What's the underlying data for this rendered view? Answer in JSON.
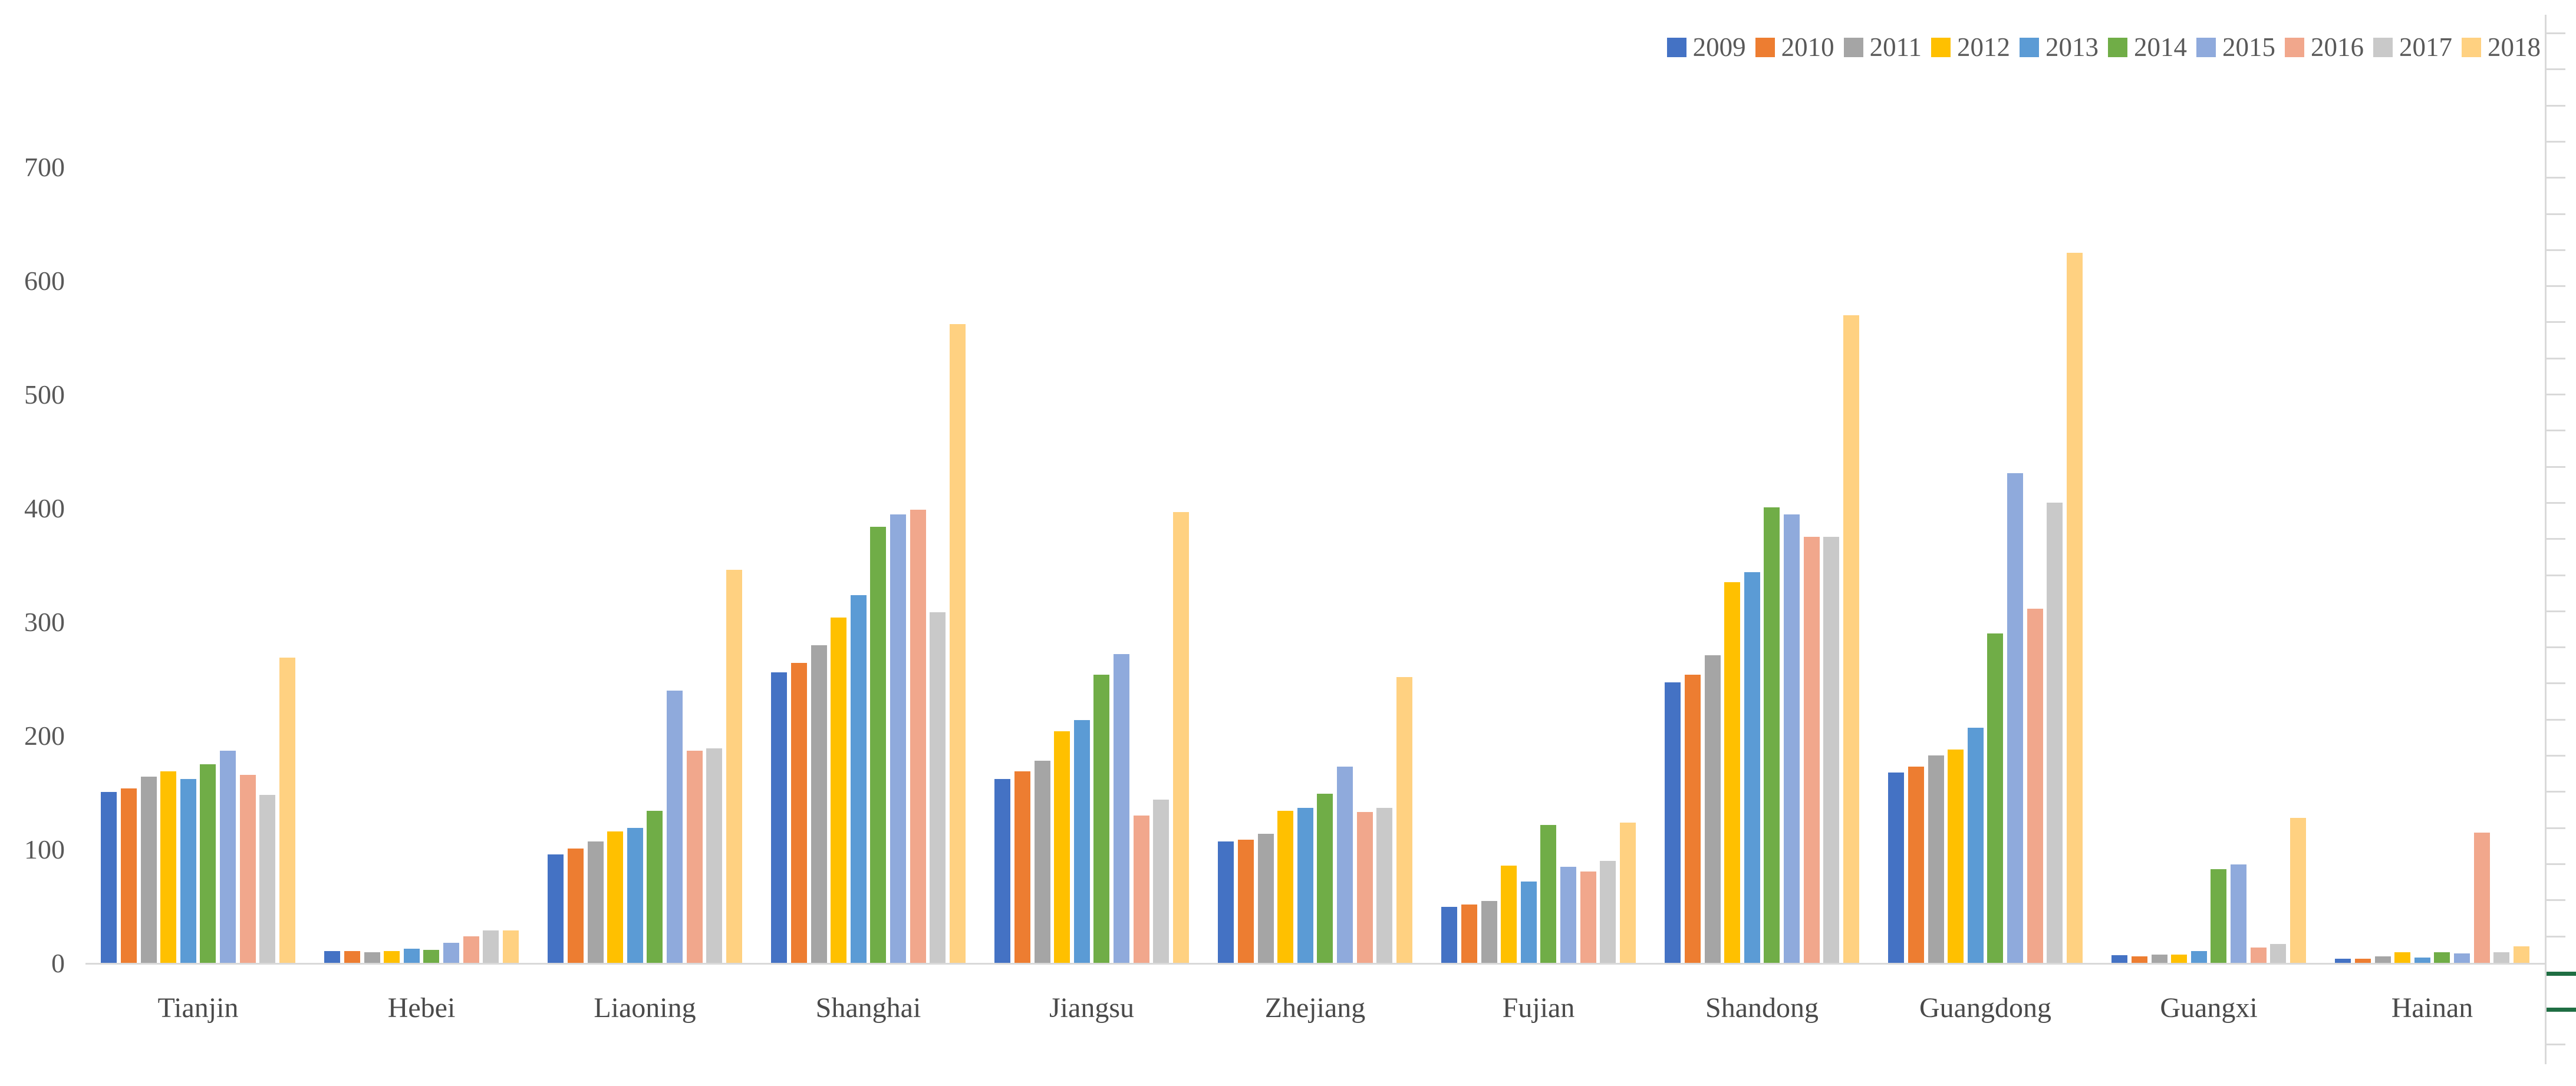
{
  "chart_data": {
    "type": "bar",
    "title": "",
    "xlabel": "",
    "ylabel": "",
    "categories": [
      "Tianjin",
      "Hebei",
      "Liaoning",
      "Shanghai",
      "Jiangsu",
      "Zhejiang",
      "Fujian",
      "Shandong",
      "Guangdong",
      "Guangxi",
      "Hainan"
    ],
    "series": [
      {
        "name": "2009",
        "color": "#4472C4",
        "values": [
          151,
          11,
          96,
          256,
          162,
          107,
          50,
          247,
          168,
          7,
          4
        ]
      },
      {
        "name": "2010",
        "color": "#ED7D31",
        "values": [
          154,
          11,
          101,
          264,
          169,
          109,
          52,
          254,
          173,
          6,
          4
        ]
      },
      {
        "name": "2011",
        "color": "#A5A5A5",
        "values": [
          164,
          10,
          107,
          280,
          178,
          114,
          55,
          271,
          183,
          8,
          6
        ]
      },
      {
        "name": "2012",
        "color": "#FFC000",
        "values": [
          169,
          11,
          116,
          304,
          204,
          134,
          86,
          335,
          188,
          8,
          10
        ]
      },
      {
        "name": "2013",
        "color": "#5B9BD5",
        "values": [
          162,
          13,
          119,
          324,
          214,
          137,
          72,
          344,
          207,
          11,
          5
        ]
      },
      {
        "name": "2014",
        "color": "#70AD47",
        "values": [
          175,
          12,
          134,
          384,
          254,
          149,
          122,
          401,
          290,
          83,
          10
        ]
      },
      {
        "name": "2015",
        "color": "#8FAADC",
        "values": [
          187,
          18,
          240,
          395,
          272,
          173,
          85,
          395,
          431,
          87,
          9
        ]
      },
      {
        "name": "2016",
        "color": "#F1A78C",
        "values": [
          166,
          24,
          187,
          399,
          130,
          133,
          81,
          375,
          312,
          14,
          115
        ]
      },
      {
        "name": "2017",
        "color": "#C9C9C9",
        "values": [
          148,
          29,
          189,
          309,
          144,
          137,
          90,
          375,
          405,
          17,
          10
        ]
      },
      {
        "name": "2018",
        "color": "#FFD181",
        "values": [
          269,
          29,
          346,
          562,
          397,
          252,
          124,
          570,
          625,
          128,
          15
        ]
      }
    ],
    "ylim": [
      0,
      750
    ],
    "y_ticks": [
      0,
      100,
      200,
      300,
      400,
      500,
      600,
      700
    ],
    "grid": "none",
    "legend_position": "top-right",
    "axis_text_color": "#595959",
    "axis_line_color": "#D9D9D9",
    "right_axis": {
      "visible": true,
      "tick_count": 29,
      "tick_color": "#D9D9D9",
      "highlight_tick_indices": [
        26,
        27
      ],
      "highlight_tick_color": "#1F6E43"
    }
  }
}
